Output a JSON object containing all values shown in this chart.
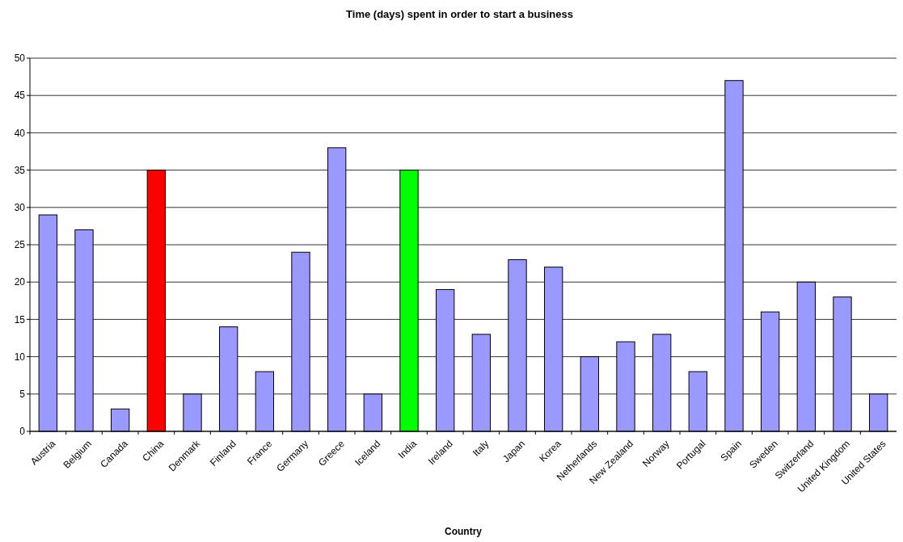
{
  "chart_data": {
    "type": "bar",
    "title": "Time (days) spent in order to start a business",
    "xlabel": "Country",
    "categories": [
      "Austria",
      "Belgium",
      "Canada",
      "China",
      "Denmark",
      "Finland",
      "France",
      "Germany",
      "Greece",
      "Iceland",
      "India",
      "Ireland",
      "Italy",
      "Japan",
      "Korea",
      "Netherlands",
      "New Zealand",
      "Norway",
      "Portugal",
      "Spain",
      "Sweden",
      "Switzerland",
      "United Kingdom",
      "United States"
    ],
    "values": [
      29,
      27,
      3,
      35,
      5,
      14,
      8,
      24,
      38,
      5,
      35,
      19,
      13,
      23,
      22,
      10,
      12,
      13,
      8,
      47,
      16,
      20,
      18,
      5
    ],
    "colors": [
      "#9999ff",
      "#9999ff",
      "#9999ff",
      "#ff0000",
      "#9999ff",
      "#9999ff",
      "#9999ff",
      "#9999ff",
      "#9999ff",
      "#9999ff",
      "#00ff00",
      "#9999ff",
      "#9999ff",
      "#9999ff",
      "#9999ff",
      "#9999ff",
      "#9999ff",
      "#9999ff",
      "#9999ff",
      "#9999ff",
      "#9999ff",
      "#9999ff",
      "#9999ff",
      "#9999ff"
    ],
    "ylim": [
      0,
      50
    ],
    "yticks": [
      0,
      5,
      10,
      15,
      20,
      25,
      30,
      35,
      40,
      45,
      50
    ],
    "grid": "y"
  }
}
